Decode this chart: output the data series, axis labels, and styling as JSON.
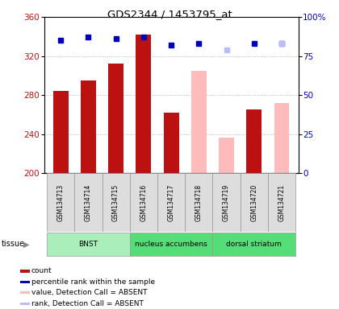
{
  "title": "GDS2344 / 1453795_at",
  "samples": [
    "GSM134713",
    "GSM134714",
    "GSM134715",
    "GSM134716",
    "GSM134717",
    "GSM134718",
    "GSM134719",
    "GSM134720",
    "GSM134721"
  ],
  "bar_values": [
    284,
    295,
    312,
    342,
    262,
    null,
    null,
    265,
    null
  ],
  "bar_absent_values": [
    null,
    null,
    null,
    null,
    null,
    305,
    236,
    null,
    272
  ],
  "rank_values": [
    85,
    87,
    86,
    87,
    82,
    83,
    null,
    83,
    83
  ],
  "rank_absent_values": [
    null,
    null,
    null,
    null,
    null,
    null,
    79,
    null,
    83
  ],
  "ylim_left": [
    200,
    360
  ],
  "ylim_right": [
    0,
    100
  ],
  "yticks_left": [
    200,
    240,
    280,
    320,
    360
  ],
  "yticks_right": [
    0,
    25,
    50,
    75,
    100
  ],
  "tissue_groups": [
    {
      "label": "BNST",
      "indices": [
        0,
        1,
        2
      ],
      "color": "#aaeebb"
    },
    {
      "label": "nucleus accumbens",
      "indices": [
        3,
        4,
        5
      ],
      "color": "#44cc66"
    },
    {
      "label": "dorsal striatum",
      "indices": [
        6,
        7,
        8
      ],
      "color": "#44cc66"
    }
  ],
  "tissue_label": "tissue",
  "bar_color": "#bb1111",
  "bar_absent_color": "#ffbbbb",
  "rank_color": "#0000bb",
  "rank_absent_color": "#bbbbff",
  "sample_box_color": "#dddddd",
  "plot_bg": "#ffffff",
  "grid_color": "#aaaaaa",
  "legend": [
    {
      "label": "count",
      "color": "#bb1111"
    },
    {
      "label": "percentile rank within the sample",
      "color": "#0000bb"
    },
    {
      "label": "value, Detection Call = ABSENT",
      "color": "#ffbbbb"
    },
    {
      "label": "rank, Detection Call = ABSENT",
      "color": "#bbbbff"
    }
  ]
}
